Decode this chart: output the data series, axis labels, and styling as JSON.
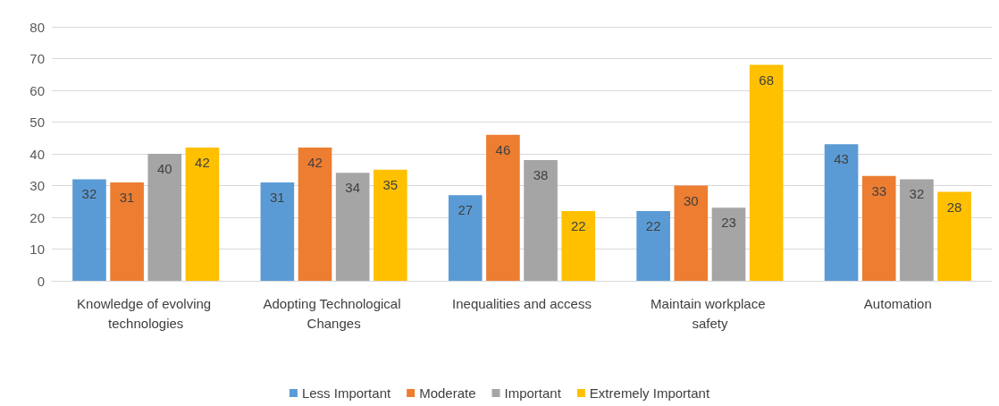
{
  "chart_data": {
    "type": "bar",
    "categories": [
      "Knowledge of evolving technologies",
      "Adopting Technological Changes",
      "Inequalities and access",
      "Maintain workplace safety",
      "Automation"
    ],
    "series": [
      {
        "name": "Less Important",
        "color": "#5b9bd5",
        "values": [
          32,
          31,
          27,
          22,
          43
        ]
      },
      {
        "name": "Moderate",
        "color": "#ed7d31",
        "values": [
          31,
          42,
          46,
          30,
          33
        ]
      },
      {
        "name": "Important",
        "color": "#a5a5a5",
        "values": [
          40,
          34,
          38,
          23,
          32
        ]
      },
      {
        "name": "Extremely Important",
        "color": "#ffc000",
        "values": [
          42,
          35,
          22,
          68,
          28
        ]
      }
    ],
    "ylim": [
      0,
      80
    ],
    "yticks": [
      0,
      10,
      20,
      30,
      40,
      50,
      60,
      70,
      80
    ],
    "grid": "y",
    "legend": "bottom",
    "data_labels": true
  }
}
